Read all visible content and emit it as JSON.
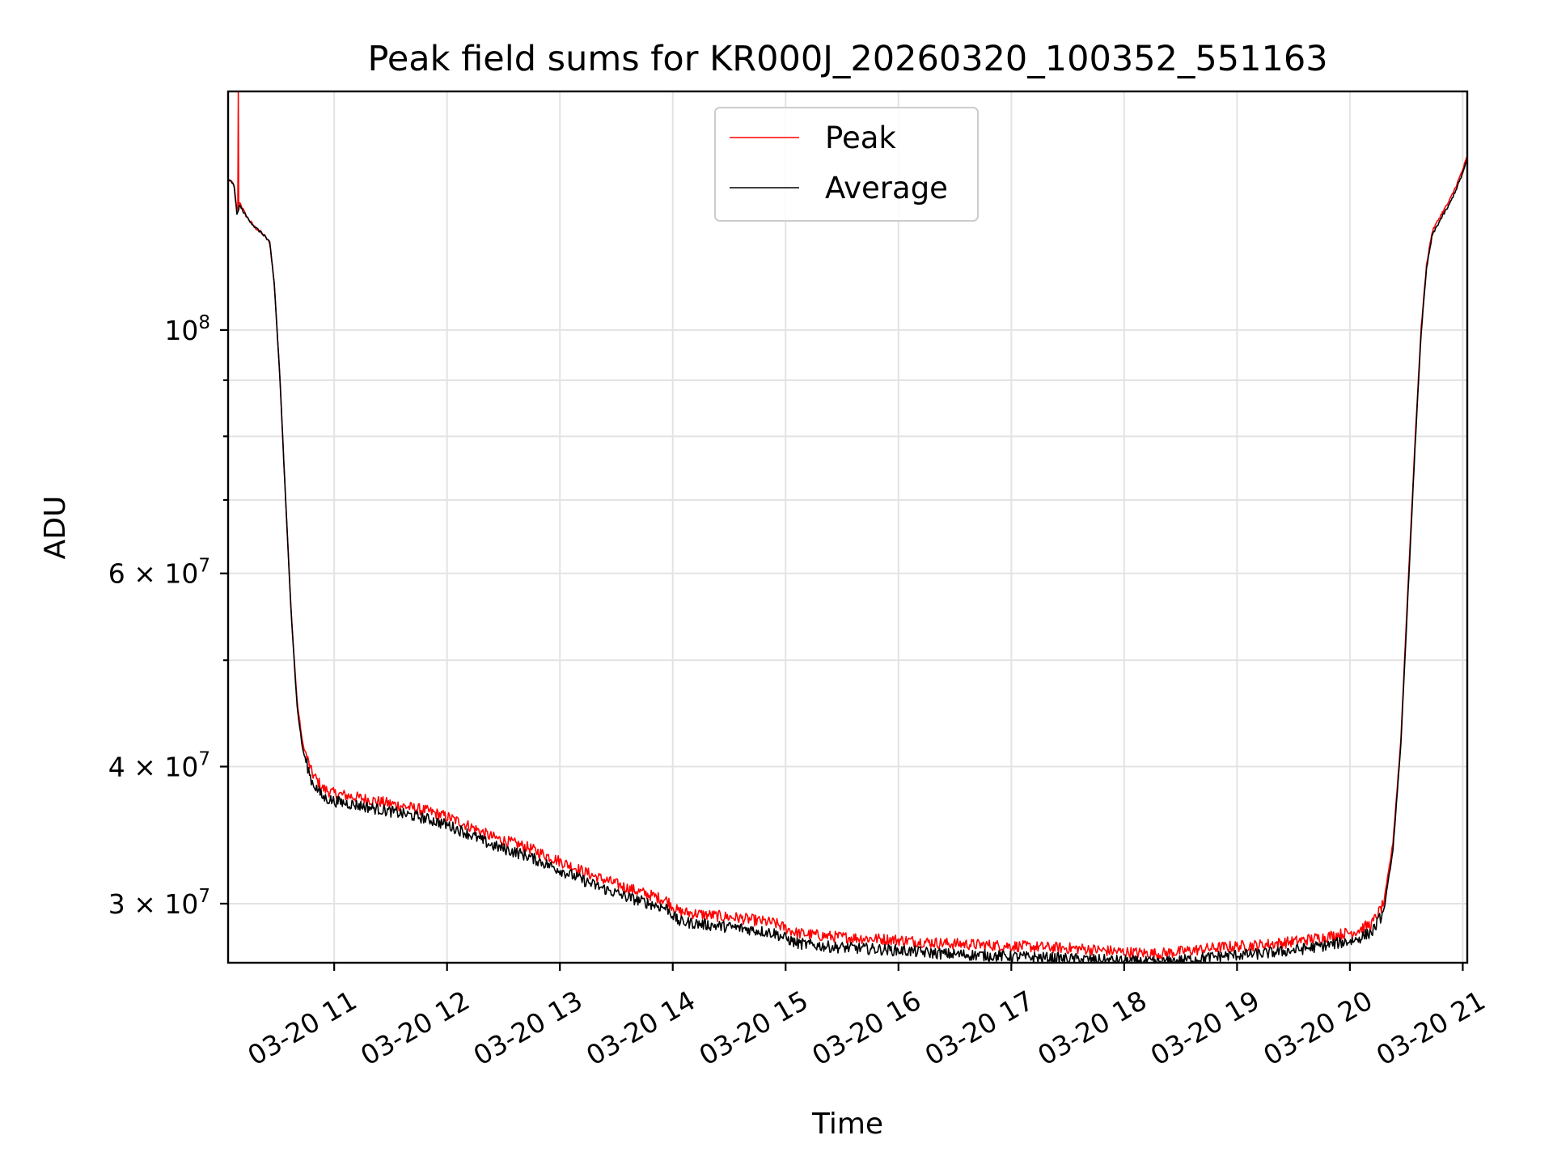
{
  "chart_data": {
    "type": "line",
    "title": "Peak field sums for KR000J_20260320_100352_551163",
    "xlabel": "Time",
    "ylabel": "ADU",
    "yscale": "log",
    "xlim": [
      10.06,
      21.04
    ],
    "ylim": [
      26500000,
      165000000
    ],
    "grid": true,
    "legend_position": "upper center",
    "x_ticks": [
      {
        "value": 11,
        "label": "03-20 11"
      },
      {
        "value": 12,
        "label": "03-20 12"
      },
      {
        "value": 13,
        "label": "03-20 13"
      },
      {
        "value": 14,
        "label": "03-20 14"
      },
      {
        "value": 15,
        "label": "03-20 15"
      },
      {
        "value": 16,
        "label": "03-20 16"
      },
      {
        "value": 17,
        "label": "03-20 17"
      },
      {
        "value": 18,
        "label": "03-20 18"
      },
      {
        "value": 19,
        "label": "03-20 19"
      },
      {
        "value": 20,
        "label": "03-20 20"
      },
      {
        "value": 21,
        "label": "03-20 21"
      }
    ],
    "y_major_ticks": [
      {
        "value": 100000000,
        "base": "10",
        "exp": "8"
      },
      {
        "value": 60000000,
        "base": "6 × 10",
        "exp": "7"
      },
      {
        "value": 40000000,
        "base": "4 × 10",
        "exp": "7"
      },
      {
        "value": 30000000,
        "base": "3 × 10",
        "exp": "7"
      }
    ],
    "y_minor_ticks": [
      90000000,
      80000000,
      70000000,
      50000000
    ],
    "x_units": "hour of day 2026-03-20",
    "series": [
      {
        "name": "Peak",
        "color": "#ff0000",
        "spike": {
          "x": 10.15,
          "y": 165000000
        },
        "points": [
          [
            10.06,
            137000000
          ],
          [
            10.11,
            136000000
          ],
          [
            10.14,
            128000000
          ],
          [
            10.16,
            131000000
          ],
          [
            10.22,
            127000000
          ],
          [
            10.3,
            124000000
          ],
          [
            10.38,
            122000000
          ],
          [
            10.43,
            120000000
          ],
          [
            10.47,
            110000000
          ],
          [
            10.52,
            90000000
          ],
          [
            10.57,
            70000000
          ],
          [
            10.62,
            55000000
          ],
          [
            10.67,
            46000000
          ],
          [
            10.72,
            42000000
          ],
          [
            10.8,
            39500000
          ],
          [
            10.9,
            38200000
          ],
          [
            11.0,
            37800000
          ],
          [
            11.2,
            37500000
          ],
          [
            11.5,
            37000000
          ],
          [
            11.8,
            36500000
          ],
          [
            12.0,
            36000000
          ],
          [
            12.2,
            35300000
          ],
          [
            12.4,
            34500000
          ],
          [
            12.7,
            33800000
          ],
          [
            13.0,
            32800000
          ],
          [
            13.3,
            31800000
          ],
          [
            13.6,
            31000000
          ],
          [
            13.95,
            30200000
          ],
          [
            14.05,
            29500000
          ],
          [
            14.3,
            29300000
          ],
          [
            14.6,
            29100000
          ],
          [
            14.9,
            28800000
          ],
          [
            15.1,
            28200000
          ],
          [
            15.4,
            28000000
          ],
          [
            15.7,
            27900000
          ],
          [
            16.0,
            27800000
          ],
          [
            16.4,
            27600000
          ],
          [
            16.8,
            27500000
          ],
          [
            17.2,
            27400000
          ],
          [
            17.6,
            27300000
          ],
          [
            18.0,
            27100000
          ],
          [
            18.3,
            27000000
          ],
          [
            18.6,
            27200000
          ],
          [
            18.9,
            27400000
          ],
          [
            19.2,
            27500000
          ],
          [
            19.5,
            27700000
          ],
          [
            19.8,
            28000000
          ],
          [
            20.05,
            28300000
          ],
          [
            20.2,
            28800000
          ],
          [
            20.3,
            30000000
          ],
          [
            20.38,
            34000000
          ],
          [
            20.45,
            42000000
          ],
          [
            20.52,
            60000000
          ],
          [
            20.58,
            80000000
          ],
          [
            20.63,
            100000000
          ],
          [
            20.68,
            115000000
          ],
          [
            20.73,
            123000000
          ],
          [
            20.8,
            127000000
          ],
          [
            20.88,
            131000000
          ],
          [
            20.95,
            136000000
          ],
          [
            21.0,
            140000000
          ],
          [
            21.04,
            144000000
          ]
        ]
      },
      {
        "name": "Average",
        "color": "#000000",
        "points": [
          [
            10.06,
            137000000
          ],
          [
            10.11,
            136000000
          ],
          [
            10.14,
            127000000
          ],
          [
            10.16,
            130000000
          ],
          [
            10.22,
            127000000
          ],
          [
            10.3,
            124000000
          ],
          [
            10.38,
            122000000
          ],
          [
            10.43,
            120000000
          ],
          [
            10.47,
            110000000
          ],
          [
            10.52,
            90000000
          ],
          [
            10.57,
            70000000
          ],
          [
            10.62,
            55000000
          ],
          [
            10.67,
            45500000
          ],
          [
            10.72,
            41500000
          ],
          [
            10.8,
            38800000
          ],
          [
            10.9,
            37500000
          ],
          [
            11.0,
            37200000
          ],
          [
            11.2,
            36900000
          ],
          [
            11.5,
            36400000
          ],
          [
            11.8,
            35900000
          ],
          [
            12.0,
            35400000
          ],
          [
            12.2,
            34700000
          ],
          [
            12.4,
            33900000
          ],
          [
            12.7,
            33200000
          ],
          [
            13.0,
            32200000
          ],
          [
            13.3,
            31200000
          ],
          [
            13.6,
            30400000
          ],
          [
            13.95,
            29700000
          ],
          [
            14.05,
            28900000
          ],
          [
            14.3,
            28700000
          ],
          [
            14.6,
            28500000
          ],
          [
            14.9,
            28200000
          ],
          [
            15.1,
            27600000
          ],
          [
            15.4,
            27400000
          ],
          [
            15.7,
            27300000
          ],
          [
            16.0,
            27200000
          ],
          [
            16.4,
            27000000
          ],
          [
            16.8,
            26900000
          ],
          [
            17.2,
            26800000
          ],
          [
            17.6,
            26700000
          ],
          [
            18.0,
            26600000
          ],
          [
            18.3,
            26500000
          ],
          [
            18.6,
            26700000
          ],
          [
            18.9,
            26900000
          ],
          [
            19.2,
            27000000
          ],
          [
            19.5,
            27200000
          ],
          [
            19.8,
            27500000
          ],
          [
            20.05,
            27800000
          ],
          [
            20.2,
            28300000
          ],
          [
            20.3,
            29500000
          ],
          [
            20.38,
            33500000
          ],
          [
            20.45,
            41500000
          ],
          [
            20.52,
            59000000
          ],
          [
            20.58,
            79000000
          ],
          [
            20.63,
            99000000
          ],
          [
            20.68,
            114000000
          ],
          [
            20.73,
            122000000
          ],
          [
            20.8,
            126000000
          ],
          [
            20.88,
            130000000
          ],
          [
            20.95,
            135000000
          ],
          [
            21.0,
            139000000
          ],
          [
            21.04,
            143000000
          ]
        ]
      }
    ]
  }
}
